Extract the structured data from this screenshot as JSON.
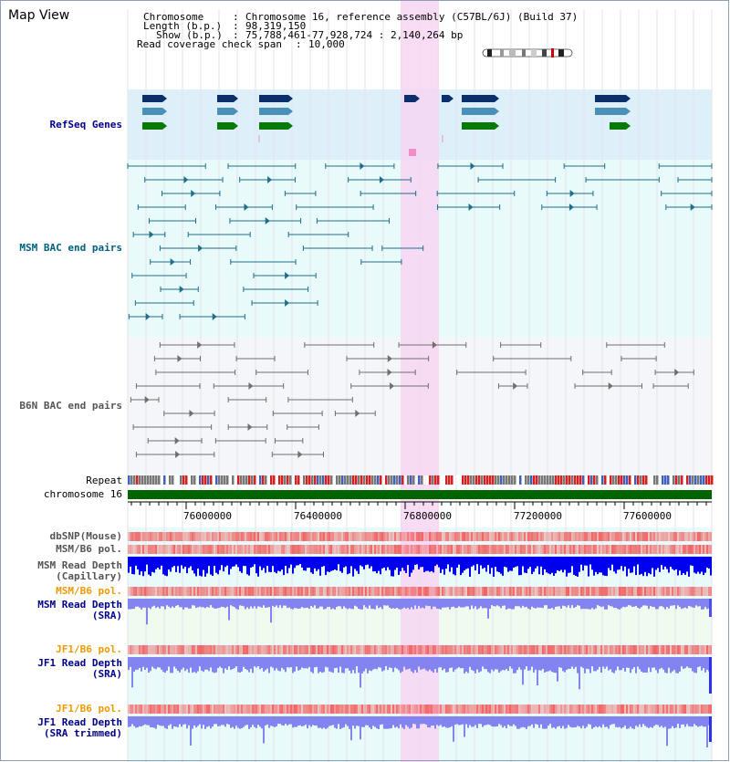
{
  "title": "Map View",
  "info": {
    "chromosome_key": "Chromosome",
    "chromosome_val": "Chromosome 16, reference assembly (C57BL/6J) (Build 37)",
    "length_key": "Length (b.p.)",
    "length_val": "98,319,150",
    "show_key": "Show (b.p.)",
    "show_val": "75,788,461-77,928,724 : 2,140,264 bp",
    "coverage_key": "Read coverage check span",
    "coverage_val": "10,000"
  },
  "tracks": {
    "refseq": "RefSeq Genes",
    "msm_bac": "MSM BAC end pairs",
    "b6n_bac": "B6N BAC end pairs",
    "repeat": "Repeat",
    "chromosome": "chromosome 16",
    "dbsnp": "dbSNP(Mouse)",
    "msm_b6_pol_1": "MSM/B6 pol.",
    "msm_depth_cap_1": "MSM Read Depth",
    "msm_depth_cap_2": "(Capillary)",
    "msm_b6_pol_2": "MSM/B6 pol.",
    "msm_depth_sra_1": "MSM Read Depth",
    "msm_depth_sra_2": "(SRA)",
    "jf1_b6_pol_1": "JF1/B6 pol.",
    "jf1_depth_sra_1": "JF1 Read Depth",
    "jf1_depth_sra_2": "(SRA)",
    "jf1_b6_pol_2": "JF1/B6 pol.",
    "jf1_depth_trim_1": "JF1 Read Depth",
    "jf1_depth_trim_2": "(SRA trimmed)"
  },
  "axis": {
    "ticks": [
      "76000000",
      "76400000",
      "76800000",
      "77200000",
      "77600000"
    ]
  },
  "colors": {
    "highlight": "#f7d6f2",
    "refseq_bg": "#ddf0fa",
    "msm_bg": "#e8fafa",
    "b6n_bg": "#f5f6f9",
    "chromosome": "#006400",
    "depth_cap": "#0000ee",
    "depth_sra": "#8484f0",
    "pol": "#f06464"
  }
}
